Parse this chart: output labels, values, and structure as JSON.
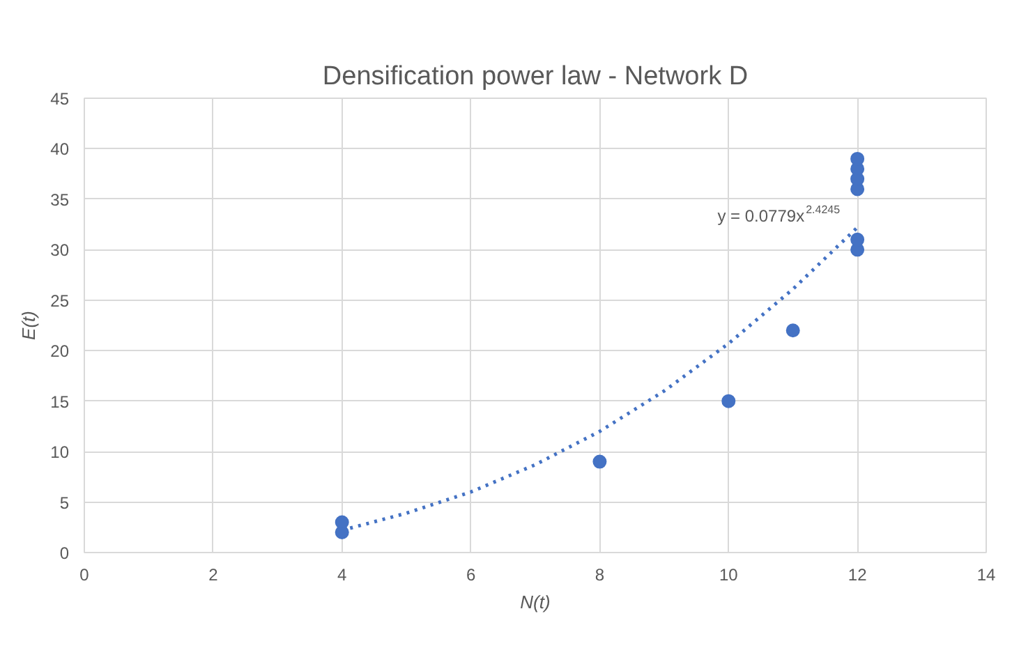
{
  "chart_data": {
    "type": "scatter",
    "title": "Densification power law - Network D",
    "xlabel": "N(t)",
    "ylabel": "E(t)",
    "series": [
      {
        "color": "#4472c4",
        "marker": "circle",
        "x": [
          4,
          4,
          8,
          10,
          11,
          12,
          12,
          12,
          12,
          12,
          12
        ],
        "values": [
          2,
          3,
          9,
          15,
          22,
          30,
          31,
          36,
          37,
          38,
          39
        ]
      },
      {
        "type": "line",
        "color": "#4472c4",
        "line_style": "dotted",
        "marker": "none",
        "x": [
          4,
          5,
          6,
          7,
          8,
          9,
          10,
          11,
          12
        ],
        "values": [
          2.2,
          3.9,
          6,
          8.7,
          12,
          16,
          20.7,
          26.1,
          32.2
        ]
      }
    ],
    "annotations": [
      "y = 0.0779x$^{2.4245}$"
    ],
    "xlim": [
      0,
      14
    ],
    "xticks": [
      0,
      2,
      4,
      6,
      8,
      10,
      12,
      14
    ],
    "ylim": [
      0,
      45
    ],
    "yticks": [
      0,
      5,
      10,
      15,
      20,
      25,
      30,
      35,
      40,
      45
    ],
    "grid": true
  }
}
